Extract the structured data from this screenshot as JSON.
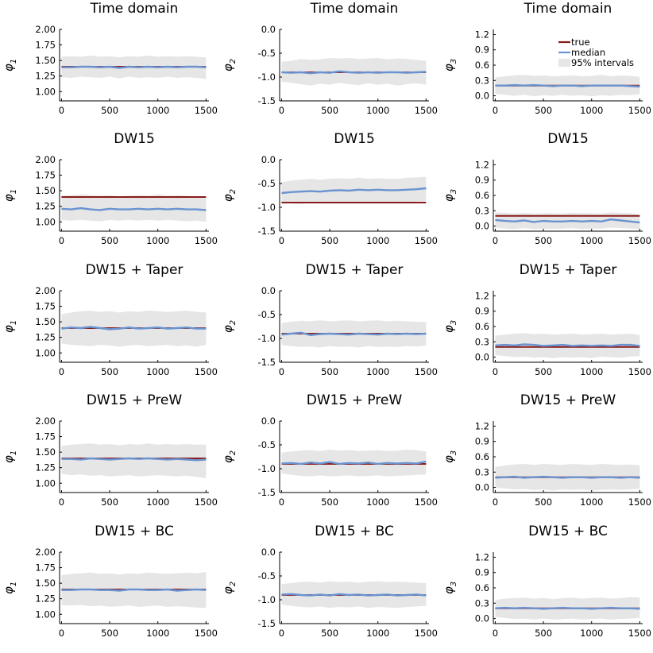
{
  "chart_data": {
    "type": "line",
    "layout": "grid 5 rows x 3 columns",
    "row_titles": [
      "Time domain",
      "DW15",
      "DW15 + Taper",
      "DW15 + PreW",
      "DW15 + BC"
    ],
    "columns": [
      {
        "ylabel": "φ",
        "ysub": "1",
        "ylim": [
          0.85,
          2.0
        ],
        "yticks": [
          "1.00",
          "1.25",
          "1.50",
          "1.75",
          "2.00"
        ],
        "ytick_values": [
          1.0,
          1.25,
          1.5,
          1.75,
          2.0
        ],
        "true_value": 1.4
      },
      {
        "ylabel": "φ",
        "ysub": "2",
        "ylim": [
          -1.5,
          0.0
        ],
        "yticks": [
          "-1.5",
          "-1.0",
          "-0.5",
          "0.0"
        ],
        "ytick_values": [
          -1.5,
          -1.0,
          -0.5,
          0.0
        ],
        "true_value": -0.9
      },
      {
        "ylabel": "φ",
        "ysub": "3",
        "ylim": [
          -0.1,
          1.3
        ],
        "yticks": [
          "0.0",
          "0.3",
          "0.6",
          "0.9",
          "1.2"
        ],
        "ytick_values": [
          0.0,
          0.3,
          0.6,
          0.9,
          1.2
        ],
        "true_value": 0.2
      }
    ],
    "xlim": [
      -20,
      1530
    ],
    "xticks": [
      "0",
      "500",
      "1000",
      "1500"
    ],
    "xtick_values": [
      0,
      500,
      1000,
      1500
    ],
    "x_points": [
      0,
      100,
      200,
      300,
      400,
      500,
      600,
      700,
      800,
      900,
      1000,
      1100,
      1200,
      1300,
      1400,
      1500
    ],
    "legend": {
      "position": "top-right",
      "panel": "row 1, column 3",
      "entries": [
        "true",
        "median",
        "95% intervals"
      ]
    },
    "colors": {
      "true": "#8b1a1a",
      "median": "#6a93d0",
      "interval": "#e6e6e6"
    },
    "panels": [
      {
        "row": 0,
        "col": 0,
        "median": [
          1.39,
          1.39,
          1.4,
          1.4,
          1.39,
          1.4,
          1.38,
          1.4,
          1.39,
          1.4,
          1.39,
          1.4,
          1.39,
          1.4,
          1.4,
          1.39
        ],
        "lower": [
          1.23,
          1.22,
          1.24,
          1.23,
          1.22,
          1.24,
          1.21,
          1.24,
          1.22,
          1.23,
          1.22,
          1.24,
          1.22,
          1.23,
          1.22,
          1.2
        ],
        "upper": [
          1.56,
          1.57,
          1.56,
          1.58,
          1.56,
          1.57,
          1.55,
          1.57,
          1.56,
          1.58,
          1.56,
          1.57,
          1.56,
          1.57,
          1.56,
          1.55
        ]
      },
      {
        "row": 0,
        "col": 1,
        "median": [
          -0.9,
          -0.91,
          -0.9,
          -0.92,
          -0.9,
          -0.91,
          -0.88,
          -0.9,
          -0.91,
          -0.9,
          -0.91,
          -0.9,
          -0.9,
          -0.91,
          -0.9,
          -0.89
        ],
        "lower": [
          -1.1,
          -1.12,
          -1.15,
          -1.18,
          -1.14,
          -1.16,
          -1.12,
          -1.15,
          -1.17,
          -1.13,
          -1.16,
          -1.14,
          -1.18,
          -1.15,
          -1.13,
          -1.16
        ],
        "upper": [
          -0.68,
          -0.66,
          -0.62,
          -0.64,
          -0.63,
          -0.6,
          -0.61,
          -0.6,
          -0.62,
          -0.61,
          -0.6,
          -0.63,
          -0.61,
          -0.62,
          -0.64,
          -0.66
        ]
      },
      {
        "row": 0,
        "col": 2,
        "median": [
          0.2,
          0.2,
          0.21,
          0.2,
          0.21,
          0.2,
          0.19,
          0.2,
          0.2,
          0.19,
          0.2,
          0.2,
          0.2,
          0.2,
          0.19,
          0.18
        ],
        "lower": [
          0.04,
          0.02,
          0.0,
          0.02,
          -0.01,
          0.01,
          0.0,
          0.02,
          0.0,
          0.01,
          -0.01,
          0.01,
          0.0,
          0.02,
          0.01,
          0.03
        ],
        "upper": [
          0.36,
          0.38,
          0.4,
          0.41,
          0.39,
          0.4,
          0.38,
          0.39,
          0.4,
          0.38,
          0.39,
          0.41,
          0.38,
          0.4,
          0.39,
          0.37
        ]
      },
      {
        "row": 1,
        "col": 0,
        "median": [
          1.21,
          1.2,
          1.22,
          1.2,
          1.19,
          1.21,
          1.2,
          1.2,
          1.21,
          1.2,
          1.21,
          1.2,
          1.21,
          1.2,
          1.2,
          1.19
        ],
        "lower": [
          1.03,
          1.02,
          1.03,
          1.02,
          1.01,
          1.03,
          1.02,
          1.03,
          1.02,
          1.03,
          1.02,
          1.03,
          1.02,
          1.01,
          1.02,
          1.0
        ],
        "upper": [
          1.42,
          1.43,
          1.44,
          1.43,
          1.42,
          1.43,
          1.41,
          1.42,
          1.43,
          1.42,
          1.44,
          1.42,
          1.43,
          1.42,
          1.41,
          1.4
        ]
      },
      {
        "row": 1,
        "col": 1,
        "median": [
          -0.7,
          -0.68,
          -0.67,
          -0.66,
          -0.67,
          -0.65,
          -0.64,
          -0.65,
          -0.63,
          -0.64,
          -0.63,
          -0.64,
          -0.64,
          -0.63,
          -0.62,
          -0.6
        ],
        "lower": [
          -0.9,
          -0.92,
          -0.93,
          -0.9,
          -0.91,
          -0.9,
          -0.89,
          -0.91,
          -0.9,
          -0.89,
          -0.9,
          -0.91,
          -0.89,
          -0.9,
          -0.88,
          -0.87
        ],
        "upper": [
          -0.47,
          -0.44,
          -0.42,
          -0.4,
          -0.42,
          -0.4,
          -0.39,
          -0.4,
          -0.38,
          -0.4,
          -0.39,
          -0.4,
          -0.4,
          -0.38,
          -0.37,
          -0.36
        ]
      },
      {
        "row": 1,
        "col": 2,
        "median": [
          0.12,
          0.1,
          0.09,
          0.11,
          0.08,
          0.1,
          0.09,
          0.09,
          0.1,
          0.09,
          0.1,
          0.09,
          0.13,
          0.11,
          0.09,
          0.07
        ],
        "lower": [
          -0.03,
          -0.05,
          -0.06,
          -0.04,
          -0.06,
          -0.05,
          -0.06,
          -0.05,
          -0.04,
          -0.06,
          -0.05,
          -0.05,
          -0.03,
          -0.04,
          -0.05,
          -0.06
        ],
        "upper": [
          0.27,
          0.26,
          0.24,
          0.26,
          0.24,
          0.25,
          0.25,
          0.24,
          0.26,
          0.25,
          0.25,
          0.24,
          0.27,
          0.26,
          0.25,
          0.23
        ]
      },
      {
        "row": 2,
        "col": 0,
        "median": [
          1.39,
          1.41,
          1.4,
          1.42,
          1.4,
          1.38,
          1.39,
          1.41,
          1.39,
          1.4,
          1.41,
          1.39,
          1.4,
          1.41,
          1.39,
          1.39
        ],
        "lower": [
          1.15,
          1.13,
          1.12,
          1.11,
          1.13,
          1.12,
          1.1,
          1.12,
          1.13,
          1.11,
          1.12,
          1.13,
          1.11,
          1.12,
          1.1,
          1.13
        ],
        "upper": [
          1.62,
          1.65,
          1.67,
          1.68,
          1.66,
          1.67,
          1.65,
          1.67,
          1.66,
          1.68,
          1.67,
          1.66,
          1.67,
          1.68,
          1.66,
          1.65
        ]
      },
      {
        "row": 2,
        "col": 1,
        "median": [
          -0.92,
          -0.9,
          -0.88,
          -0.93,
          -0.91,
          -0.9,
          -0.91,
          -0.92,
          -0.9,
          -0.91,
          -0.92,
          -0.9,
          -0.91,
          -0.9,
          -0.91,
          -0.9
        ],
        "lower": [
          -1.14,
          -1.16,
          -1.18,
          -1.17,
          -1.19,
          -1.16,
          -1.18,
          -1.17,
          -1.19,
          -1.16,
          -1.18,
          -1.17,
          -1.18,
          -1.16,
          -1.17,
          -1.15
        ],
        "upper": [
          -0.68,
          -0.65,
          -0.63,
          -0.64,
          -0.62,
          -0.64,
          -0.63,
          -0.62,
          -0.64,
          -0.63,
          -0.62,
          -0.64,
          -0.63,
          -0.64,
          -0.65,
          -0.66
        ]
      },
      {
        "row": 2,
        "col": 2,
        "median": [
          0.23,
          0.24,
          0.23,
          0.25,
          0.24,
          0.22,
          0.23,
          0.24,
          0.22,
          0.23,
          0.22,
          0.23,
          0.22,
          0.24,
          0.24,
          0.22
        ],
        "lower": [
          0.04,
          0.02,
          0.0,
          0.01,
          -0.01,
          0.0,
          -0.02,
          0.0,
          -0.01,
          0.0,
          -0.02,
          0.01,
          0.0,
          -0.01,
          0.01,
          0.02
        ],
        "upper": [
          0.42,
          0.44,
          0.46,
          0.47,
          0.45,
          0.46,
          0.44,
          0.45,
          0.46,
          0.44,
          0.45,
          0.46,
          0.44,
          0.45,
          0.46,
          0.43
        ]
      },
      {
        "row": 3,
        "col": 0,
        "median": [
          1.39,
          1.39,
          1.38,
          1.4,
          1.39,
          1.38,
          1.39,
          1.4,
          1.39,
          1.4,
          1.39,
          1.38,
          1.39,
          1.38,
          1.37,
          1.38
        ],
        "lower": [
          1.15,
          1.13,
          1.14,
          1.12,
          1.13,
          1.11,
          1.12,
          1.13,
          1.11,
          1.12,
          1.13,
          1.12,
          1.11,
          1.12,
          1.1,
          1.08
        ],
        "upper": [
          1.6,
          1.62,
          1.63,
          1.64,
          1.62,
          1.63,
          1.61,
          1.63,
          1.62,
          1.64,
          1.62,
          1.63,
          1.62,
          1.63,
          1.62,
          1.62
        ]
      },
      {
        "row": 3,
        "col": 1,
        "median": [
          -0.89,
          -0.88,
          -0.9,
          -0.87,
          -0.89,
          -0.86,
          -0.9,
          -0.88,
          -0.89,
          -0.87,
          -0.9,
          -0.88,
          -0.89,
          -0.88,
          -0.89,
          -0.85
        ],
        "lower": [
          -1.1,
          -1.13,
          -1.15,
          -1.16,
          -1.14,
          -1.16,
          -1.15,
          -1.14,
          -1.16,
          -1.15,
          -1.14,
          -1.16,
          -1.15,
          -1.14,
          -1.13,
          -1.12
        ],
        "upper": [
          -0.66,
          -0.64,
          -0.62,
          -0.61,
          -0.63,
          -0.6,
          -0.62,
          -0.61,
          -0.63,
          -0.62,
          -0.61,
          -0.63,
          -0.62,
          -0.6,
          -0.61,
          -0.64
        ]
      },
      {
        "row": 3,
        "col": 2,
        "median": [
          0.19,
          0.2,
          0.21,
          0.19,
          0.2,
          0.21,
          0.2,
          0.19,
          0.2,
          0.2,
          0.19,
          0.2,
          0.2,
          0.19,
          0.2,
          0.19
        ],
        "lower": [
          0.0,
          -0.02,
          -0.04,
          -0.03,
          -0.05,
          -0.04,
          -0.06,
          -0.04,
          -0.05,
          -0.04,
          -0.06,
          -0.05,
          -0.04,
          -0.05,
          -0.04,
          -0.03
        ],
        "upper": [
          0.4,
          0.43,
          0.45,
          0.46,
          0.44,
          0.46,
          0.45,
          0.44,
          0.46,
          0.45,
          0.44,
          0.46,
          0.45,
          0.44,
          0.45,
          0.43
        ]
      },
      {
        "row": 4,
        "col": 0,
        "median": [
          1.39,
          1.39,
          1.4,
          1.4,
          1.39,
          1.39,
          1.38,
          1.4,
          1.4,
          1.39,
          1.39,
          1.4,
          1.38,
          1.39,
          1.4,
          1.39
        ],
        "lower": [
          1.15,
          1.14,
          1.15,
          1.13,
          1.14,
          1.12,
          1.13,
          1.14,
          1.12,
          1.13,
          1.14,
          1.12,
          1.13,
          1.12,
          1.11,
          1.1
        ],
        "upper": [
          1.63,
          1.65,
          1.66,
          1.67,
          1.65,
          1.66,
          1.64,
          1.66,
          1.65,
          1.67,
          1.66,
          1.65,
          1.66,
          1.67,
          1.66,
          1.68
        ]
      },
      {
        "row": 4,
        "col": 1,
        "median": [
          -0.89,
          -0.88,
          -0.9,
          -0.91,
          -0.89,
          -0.91,
          -0.88,
          -0.9,
          -0.89,
          -0.91,
          -0.9,
          -0.89,
          -0.91,
          -0.9,
          -0.89,
          -0.91
        ],
        "lower": [
          -1.1,
          -1.13,
          -1.15,
          -1.16,
          -1.14,
          -1.17,
          -1.15,
          -1.16,
          -1.14,
          -1.17,
          -1.15,
          -1.16,
          -1.17,
          -1.15,
          -1.14,
          -1.13
        ],
        "upper": [
          -0.67,
          -0.65,
          -0.63,
          -0.62,
          -0.64,
          -0.61,
          -0.63,
          -0.62,
          -0.64,
          -0.62,
          -0.61,
          -0.63,
          -0.62,
          -0.63,
          -0.64,
          -0.65
        ]
      },
      {
        "row": 4,
        "col": 2,
        "median": [
          0.2,
          0.21,
          0.2,
          0.21,
          0.2,
          0.19,
          0.2,
          0.21,
          0.2,
          0.2,
          0.19,
          0.2,
          0.21,
          0.2,
          0.2,
          0.19
        ],
        "lower": [
          0.03,
          0.01,
          -0.01,
          0.0,
          -0.02,
          0.0,
          -0.02,
          -0.01,
          0.0,
          -0.02,
          -0.01,
          0.0,
          -0.02,
          -0.01,
          0.0,
          0.01
        ],
        "upper": [
          0.36,
          0.39,
          0.4,
          0.41,
          0.39,
          0.4,
          0.38,
          0.4,
          0.41,
          0.39,
          0.4,
          0.41,
          0.39,
          0.4,
          0.42,
          0.41
        ]
      }
    ]
  }
}
